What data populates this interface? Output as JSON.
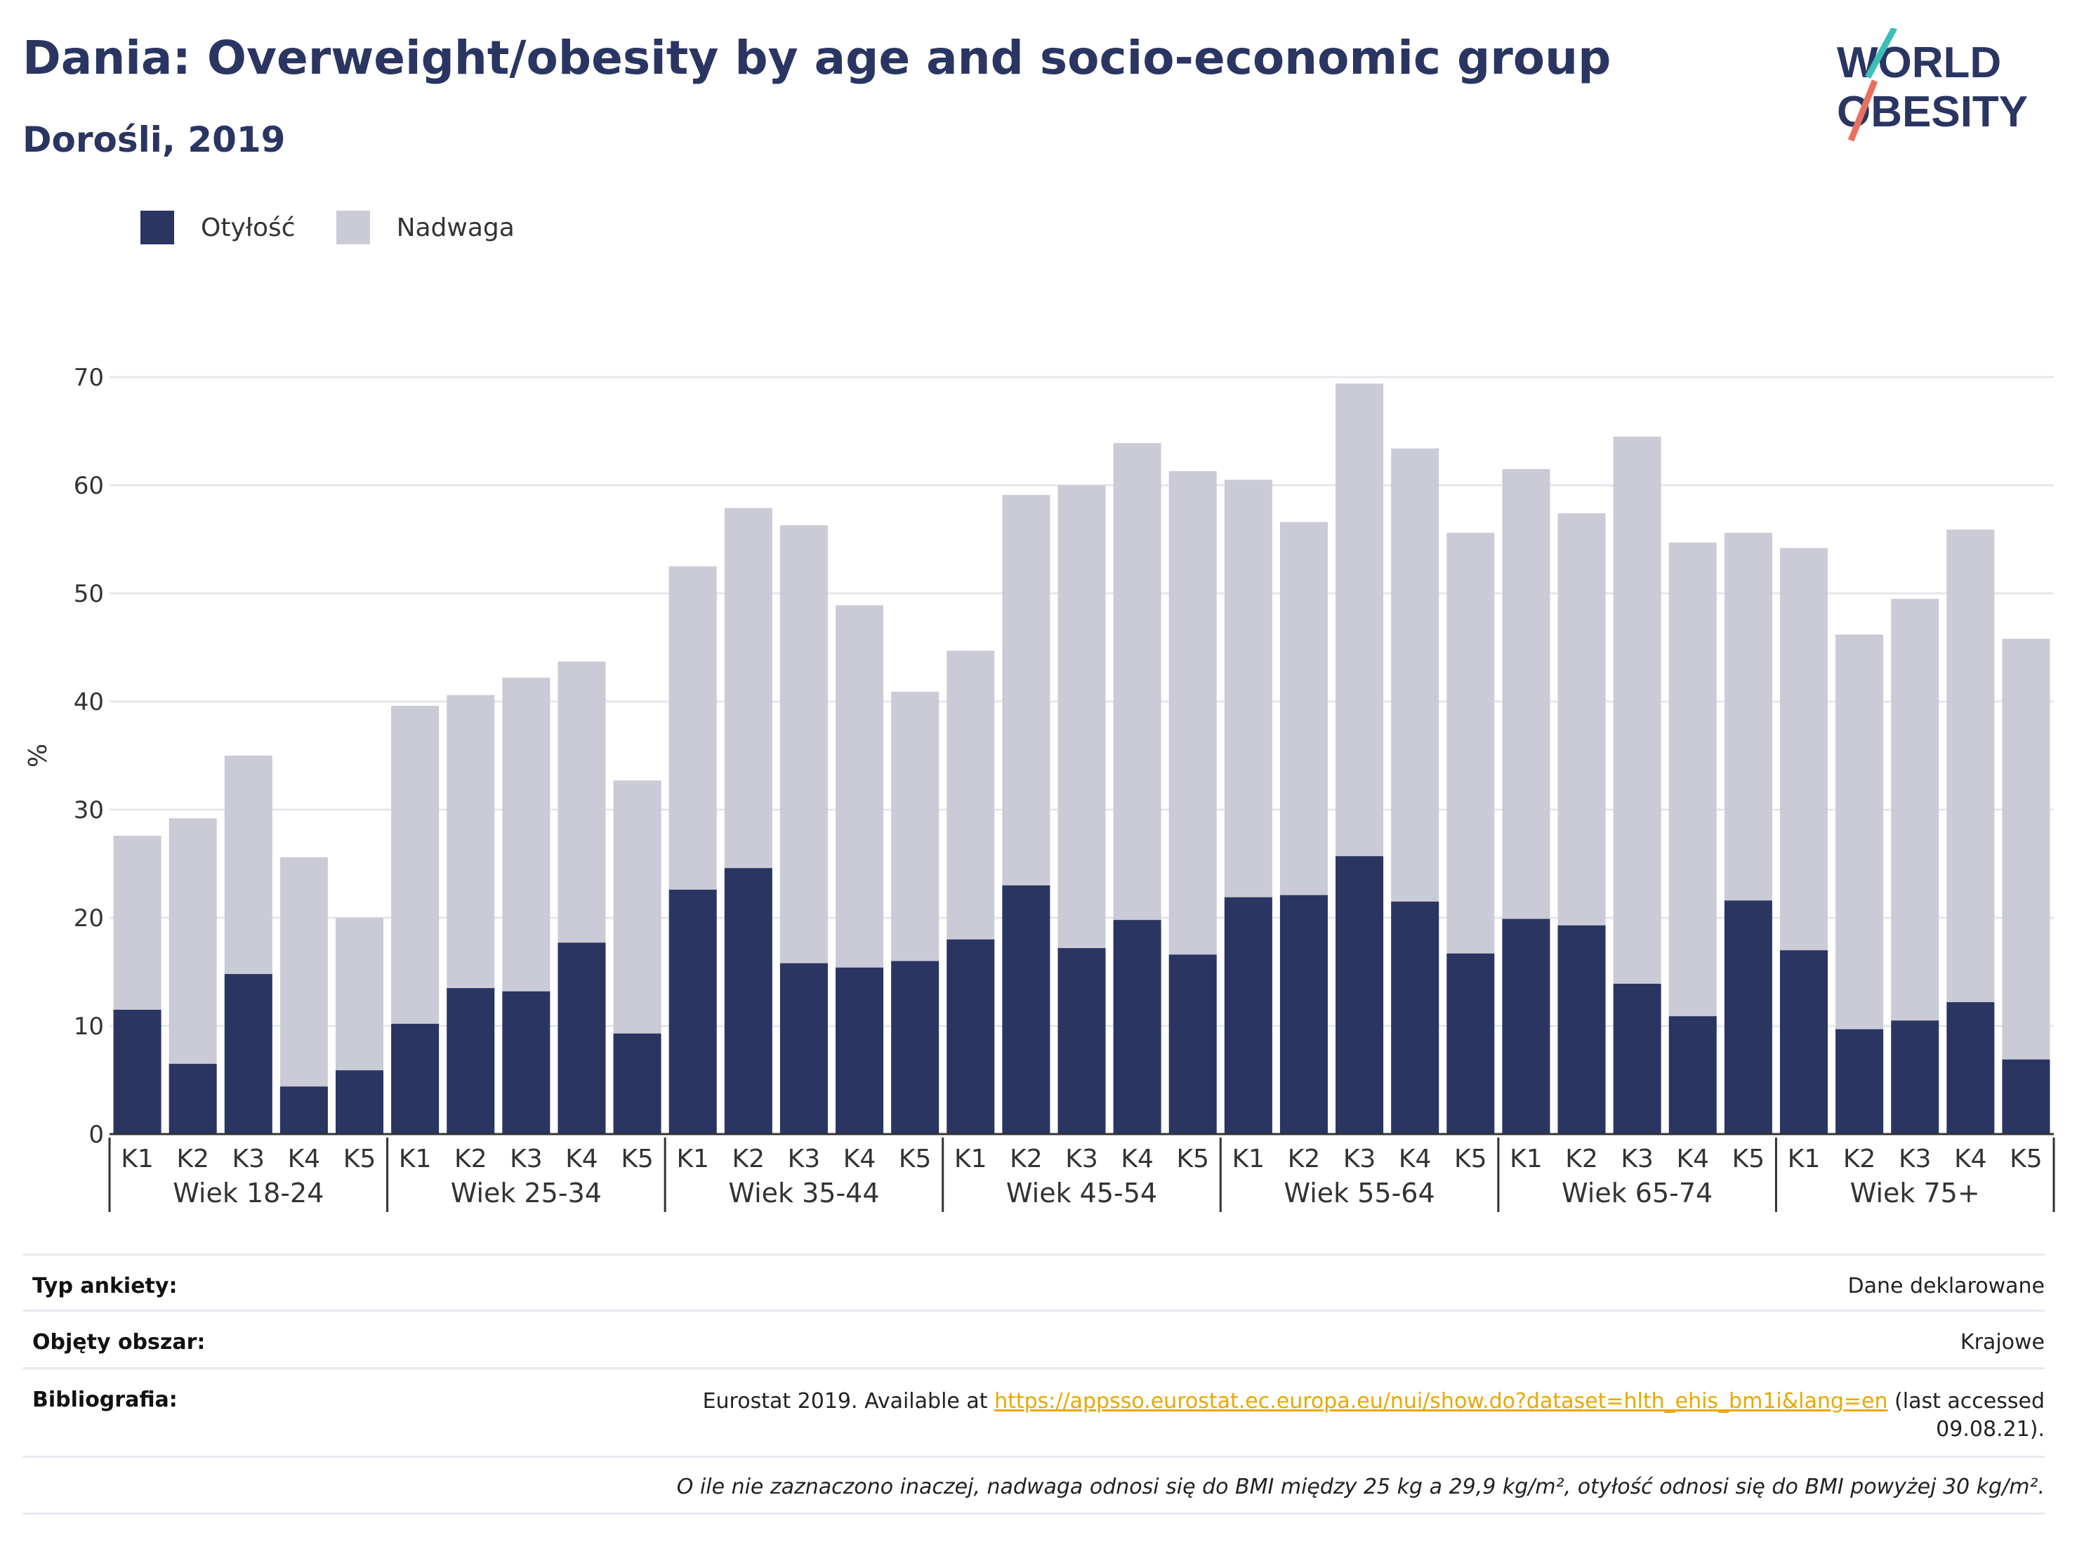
{
  "header": {
    "title": "Dania: Overweight/obesity by age and socio-economic group",
    "subtitle": "Dorośli, 2019"
  },
  "logo": {
    "line1": "WORLD",
    "line2": "OBESITY"
  },
  "legend": [
    {
      "label": "Otyłość",
      "color": "#2a3562"
    },
    {
      "label": "Nadwaga",
      "color": "#cacbd6"
    }
  ],
  "chart_data": {
    "type": "bar",
    "stacked": true,
    "ylabel": "%",
    "ylim": [
      0,
      70
    ],
    "yticks": [
      0,
      10,
      20,
      30,
      40,
      50,
      60,
      70
    ],
    "grid": true,
    "legend_position": "top-left",
    "groups": [
      "Wiek 18-24",
      "Wiek 25-34",
      "Wiek 35-44",
      "Wiek 45-54",
      "Wiek 55-64",
      "Wiek 65-74",
      "Wiek 75+"
    ],
    "subcategories": [
      "K1",
      "K2",
      "K3",
      "K4",
      "K5"
    ],
    "series": [
      {
        "name": "Otyłość",
        "color": "#2a3562",
        "values": [
          11.5,
          6.5,
          14.8,
          4.4,
          5.9,
          10.2,
          13.5,
          13.2,
          17.7,
          9.3,
          22.6,
          24.6,
          15.8,
          15.4,
          16.0,
          18.0,
          23.0,
          17.2,
          19.8,
          16.6,
          21.9,
          22.1,
          25.7,
          21.5,
          16.7,
          19.9,
          19.3,
          13.9,
          10.9,
          21.6,
          17.0,
          9.7,
          10.5,
          12.2,
          6.9
        ]
      },
      {
        "name": "Nadwaga",
        "color": "#cacbd6",
        "values": [
          16.1,
          22.7,
          20.2,
          21.2,
          14.1,
          29.4,
          27.1,
          29.0,
          26.0,
          23.4,
          29.9,
          33.3,
          40.5,
          33.5,
          24.9,
          26.7,
          36.1,
          42.8,
          44.1,
          44.7,
          38.6,
          34.5,
          43.7,
          41.9,
          38.9,
          41.6,
          38.1,
          50.6,
          43.8,
          34.0,
          37.2,
          36.5,
          39.0,
          43.7,
          38.9
        ]
      }
    ]
  },
  "info": {
    "survey_type": {
      "label": "Typ ankiety:",
      "value": "Dane deklarowane"
    },
    "coverage": {
      "label": "Objęty obszar:",
      "value": "Krajowe"
    },
    "bibliography": {
      "label": "Bibliografia:",
      "prefix": "Eurostat 2019. Available at ",
      "link": "https://appsso.eurostat.ec.europa.eu/nui/show.do?dataset=hlth_ehis_bm1i&lang=en",
      "suffix": " (last accessed",
      "suffix2": "09.08.21)."
    },
    "note": "O ile nie zaznaczono inaczej, nadwaga odnosi się do BMI między 25 kg a 29,9 kg/m², otyłość odnosi się do BMI powyżej 30 kg/m²."
  }
}
